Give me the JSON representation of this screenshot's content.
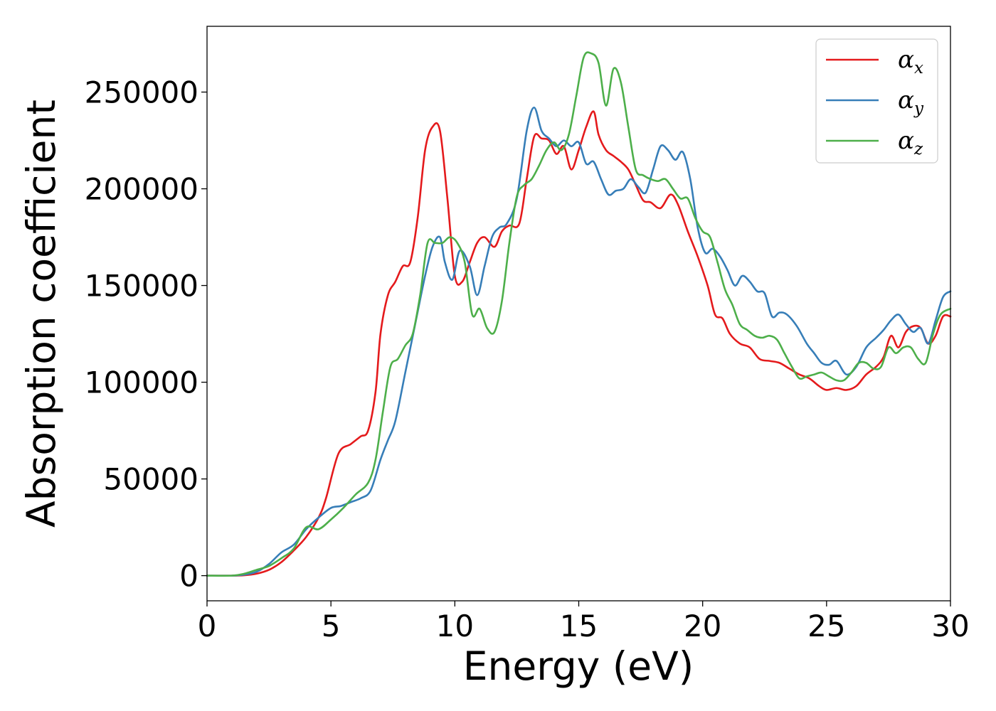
{
  "chart_data": {
    "type": "line",
    "title": "",
    "xlabel": "Energy (eV)",
    "ylabel": "Absorption coefficient",
    "xlim": [
      0,
      30
    ],
    "ylim": [
      -13000,
      284000
    ],
    "xticks": [
      0,
      5,
      10,
      15,
      20,
      25,
      30
    ],
    "yticks": [
      0,
      50000,
      100000,
      150000,
      200000,
      250000
    ],
    "grid": false,
    "legend_position": "top-right",
    "series": [
      {
        "name": "α_x",
        "name_base": "α",
        "name_sub": "x",
        "color": "#e41a1c",
        "x": [
          0,
          1,
          1.5,
          2,
          2.5,
          3,
          3.5,
          4,
          4.5,
          4.8,
          5.3,
          5.8,
          6.2,
          6.5,
          6.8,
          7,
          7.3,
          7.6,
          7.9,
          8.2,
          8.5,
          8.8,
          9.1,
          9.4,
          9.7,
          10,
          10.3,
          10.6,
          10.9,
          11.2,
          11.6,
          11.9,
          12.2,
          12.6,
          12.9,
          13.2,
          13.5,
          13.8,
          14.1,
          14.4,
          14.7,
          15,
          15.3,
          15.6,
          15.8,
          16.1,
          16.4,
          16.7,
          17,
          17.3,
          17.6,
          17.9,
          18.3,
          18.7,
          19,
          19.4,
          19.8,
          20.2,
          20.5,
          20.8,
          21.1,
          21.5,
          21.9,
          22.3,
          22.7,
          23.1,
          23.5,
          23.9,
          24.3,
          24.7,
          25,
          25.4,
          25.8,
          26.2,
          26.6,
          27,
          27.3,
          27.6,
          27.9,
          28.2,
          28.5,
          28.8,
          29.1,
          29.4,
          29.7,
          30
        ],
        "y": [
          0,
          0,
          200,
          1000,
          3000,
          7000,
          13000,
          20000,
          30000,
          40000,
          63000,
          68000,
          72000,
          75000,
          95000,
          125000,
          145000,
          152000,
          160000,
          162000,
          185000,
          220000,
          232000,
          230000,
          195000,
          155000,
          152000,
          162000,
          172000,
          175000,
          170000,
          178000,
          181000,
          182000,
          205000,
          227000,
          226000,
          225000,
          218000,
          222000,
          210000,
          220000,
          232000,
          240000,
          228000,
          220000,
          217000,
          214000,
          210000,
          202000,
          194000,
          193000,
          190000,
          197000,
          192000,
          178000,
          165000,
          150000,
          135000,
          133000,
          125000,
          120000,
          118000,
          112000,
          111000,
          110000,
          107000,
          104000,
          102000,
          98000,
          96000,
          97000,
          96000,
          98000,
          104000,
          108000,
          113000,
          124000,
          118000,
          126000,
          129000,
          128000,
          120000,
          124000,
          134000,
          134000
        ]
      },
      {
        "name": "α_y",
        "name_base": "α",
        "name_sub": "y",
        "color": "#377eb8",
        "x": [
          0,
          1,
          1.5,
          2,
          2.5,
          3,
          3.5,
          4,
          4.5,
          5,
          5.4,
          5.8,
          6.2,
          6.6,
          7,
          7.3,
          7.6,
          8,
          8.4,
          8.8,
          9.1,
          9.4,
          9.6,
          9.9,
          10.2,
          10.6,
          10.9,
          11.2,
          11.5,
          11.8,
          12.1,
          12.5,
          12.9,
          13.2,
          13.5,
          13.8,
          14.1,
          14.4,
          14.7,
          15,
          15.3,
          15.6,
          15.9,
          16.2,
          16.5,
          16.8,
          17.1,
          17.4,
          17.7,
          18,
          18.3,
          18.6,
          18.9,
          19.2,
          19.5,
          19.8,
          20.1,
          20.4,
          20.7,
          21,
          21.3,
          21.6,
          21.9,
          22.2,
          22.5,
          22.8,
          23.1,
          23.4,
          23.8,
          24.2,
          24.5,
          24.8,
          25.1,
          25.4,
          25.8,
          26.2,
          26.6,
          27,
          27.3,
          27.6,
          27.9,
          28.2,
          28.5,
          28.8,
          29.1,
          29.4,
          29.7,
          30
        ],
        "y": [
          0,
          0,
          500,
          2000,
          6000,
          12000,
          16000,
          24000,
          30000,
          35000,
          36000,
          38000,
          40000,
          44000,
          60000,
          70000,
          80000,
          105000,
          130000,
          155000,
          170000,
          175000,
          162000,
          153000,
          168000,
          160000,
          145000,
          160000,
          175000,
          180000,
          182000,
          195000,
          230000,
          242000,
          230000,
          226000,
          222000,
          225000,
          222000,
          224000,
          213000,
          214000,
          205000,
          197000,
          199000,
          200000,
          205000,
          201000,
          198000,
          210000,
          222000,
          220000,
          215000,
          219000,
          205000,
          180000,
          167000,
          169000,
          165000,
          158000,
          150000,
          155000,
          152000,
          147000,
          146000,
          134000,
          136000,
          135000,
          129000,
          120000,
          115000,
          110000,
          109000,
          111000,
          104000,
          108000,
          118000,
          123000,
          127000,
          132000,
          135000,
          130000,
          126000,
          128000,
          120000,
          132000,
          144000,
          147000
        ]
      },
      {
        "name": "α_z",
        "name_base": "α",
        "name_sub": "z",
        "color": "#4daf4a",
        "x": [
          0,
          1,
          1.5,
          2,
          2.5,
          3,
          3.5,
          4,
          4.5,
          5,
          5.5,
          6,
          6.5,
          6.8,
          7.1,
          7.4,
          7.7,
          8,
          8.3,
          8.6,
          8.9,
          9.2,
          9.5,
          9.8,
          10.1,
          10.4,
          10.7,
          11,
          11.3,
          11.6,
          11.9,
          12.2,
          12.5,
          12.8,
          13.1,
          13.4,
          13.7,
          14,
          14.3,
          14.6,
          14.9,
          15.2,
          15.5,
          15.8,
          16.1,
          16.4,
          16.7,
          17,
          17.3,
          17.6,
          17.9,
          18.2,
          18.5,
          18.8,
          19.1,
          19.4,
          19.7,
          20,
          20.3,
          20.6,
          20.9,
          21.2,
          21.5,
          21.8,
          22.1,
          22.4,
          22.7,
          23,
          23.3,
          23.6,
          23.9,
          24.2,
          24.5,
          24.8,
          25.1,
          25.4,
          25.7,
          26,
          26.3,
          26.6,
          26.9,
          27.2,
          27.5,
          27.8,
          28.1,
          28.4,
          28.7,
          29,
          29.3,
          29.6,
          30
        ],
        "y": [
          0,
          0,
          1000,
          3000,
          5000,
          9000,
          14000,
          25000,
          24000,
          29000,
          35000,
          42000,
          48000,
          60000,
          85000,
          108000,
          112000,
          119000,
          125000,
          145000,
          172000,
          172000,
          172000,
          175000,
          172000,
          162000,
          135000,
          138000,
          128000,
          126000,
          142000,
          172000,
          196000,
          202000,
          205000,
          212000,
          220000,
          224000,
          220000,
          228000,
          248000,
          268000,
          270000,
          265000,
          243000,
          262000,
          255000,
          232000,
          210000,
          207000,
          205000,
          204000,
          205000,
          200000,
          195000,
          195000,
          185000,
          178000,
          175000,
          162000,
          148000,
          140000,
          130000,
          127000,
          124000,
          123000,
          124000,
          122000,
          115000,
          108000,
          102000,
          103000,
          104000,
          105000,
          103000,
          101000,
          101000,
          105000,
          110000,
          110000,
          107000,
          108000,
          118000,
          115000,
          118000,
          118000,
          112000,
          110000,
          125000,
          135000,
          138000
        ]
      }
    ]
  }
}
